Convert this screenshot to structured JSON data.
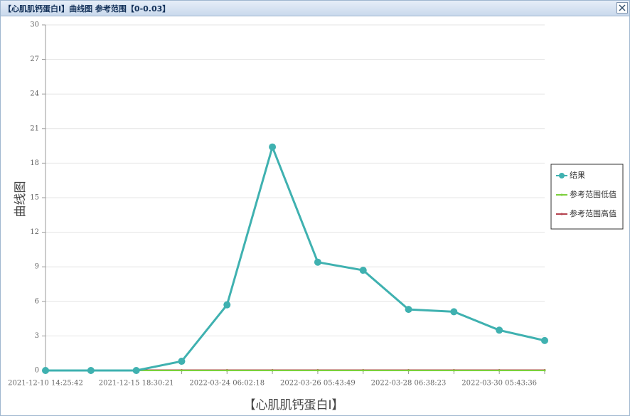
{
  "window": {
    "title": "【心肌肌钙蛋白I】曲线图  参考范围【0-0.03】"
  },
  "chart_data": {
    "type": "line",
    "y_label": "曲线图",
    "x_label": "【心肌肌钙蛋白I】",
    "categories": [
      "2021-12-10 14:25:42",
      null,
      "2021-12-15 18:30:21",
      null,
      "2022-03-24 06:02:18",
      null,
      "2022-03-26 05:43:49",
      null,
      "2022-03-28 06:38:23",
      null,
      "2022-03-30 05:43:36",
      null
    ],
    "series": [
      {
        "name": "结果",
        "color": "#3fb1b0",
        "values": [
          0,
          0,
          0,
          0.8,
          5.7,
          19.4,
          9.4,
          8.7,
          5.3,
          5.1,
          3.5,
          2.6
        ]
      },
      {
        "name": "参考范围低值",
        "color": "#7ccf3c",
        "values": [
          0,
          0,
          0,
          0,
          0,
          0,
          0,
          0,
          0,
          0,
          0,
          0
        ]
      },
      {
        "name": "参考范围高值",
        "color": "#b5434f",
        "values": [
          0.03,
          0.03,
          0.03,
          0.03,
          0.03,
          0.03,
          0.03,
          0.03,
          0.03,
          0.03,
          0.03,
          0.03
        ]
      }
    ],
    "ylim": [
      0,
      30
    ],
    "yticks": [
      0,
      3,
      6,
      9,
      12,
      15,
      18,
      21,
      24,
      27,
      30
    ],
    "grid": true,
    "legend": "right"
  }
}
